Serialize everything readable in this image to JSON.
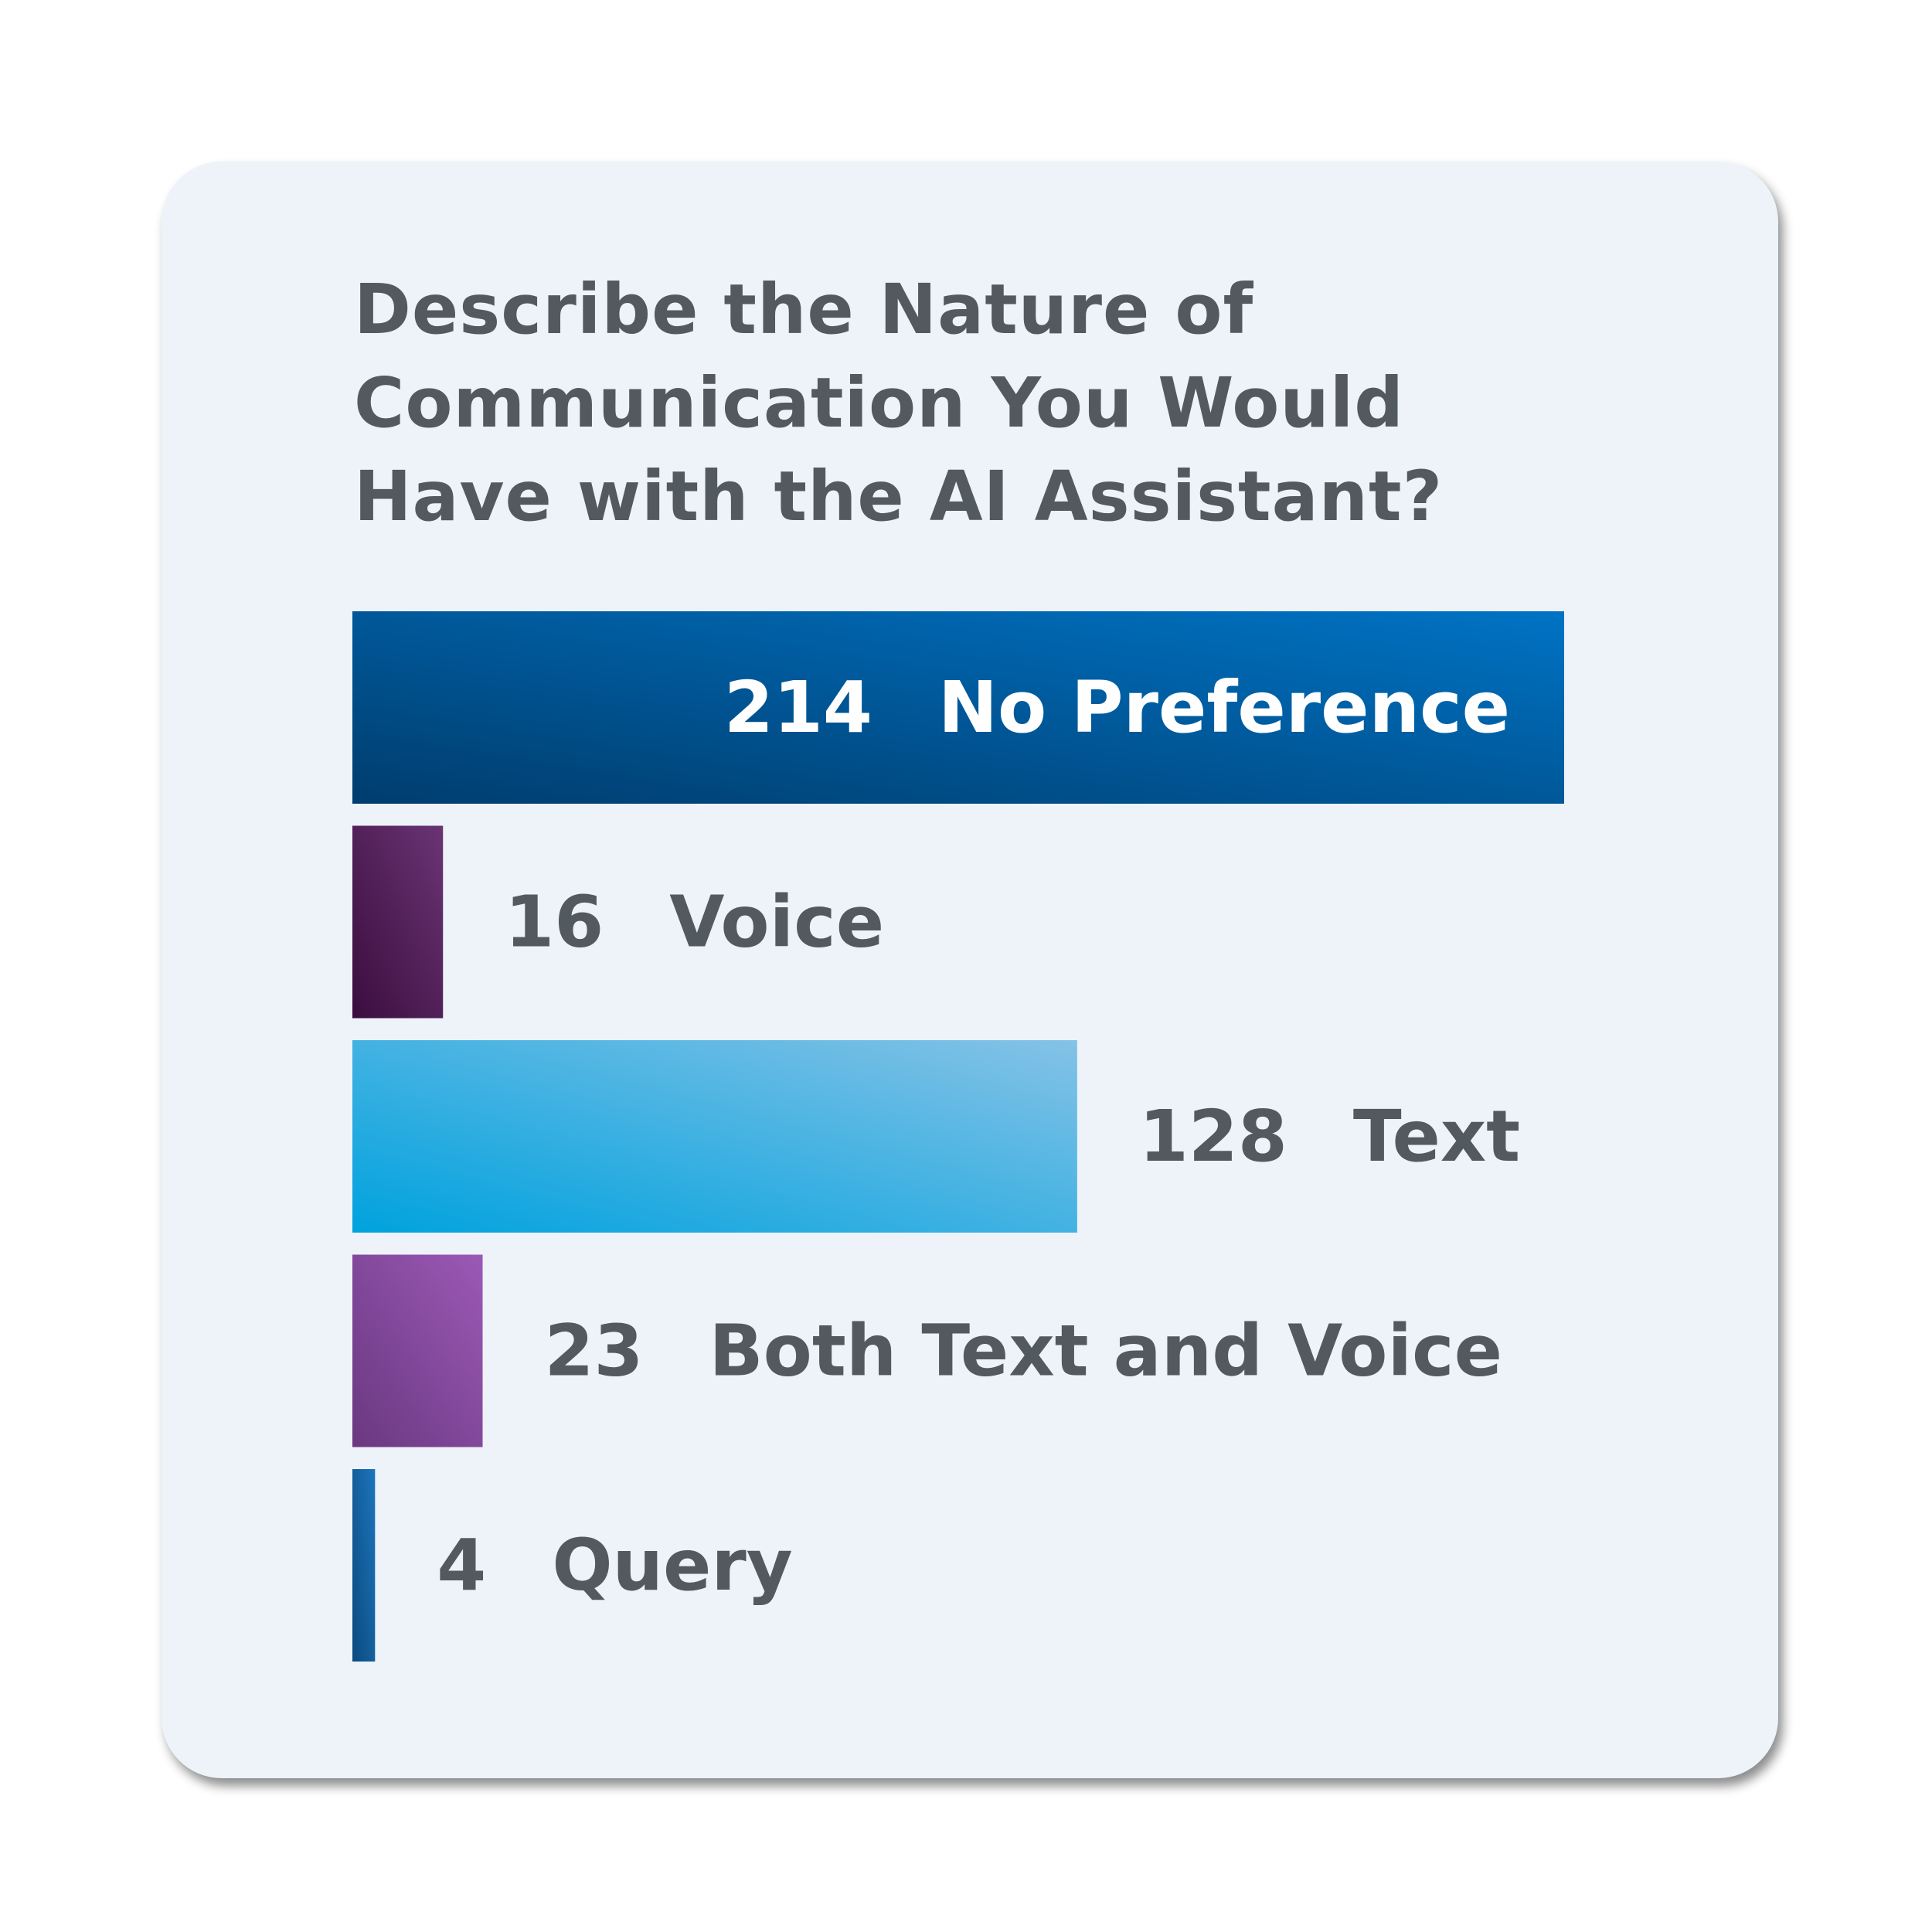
{
  "title": "Describe the Nature of Communication You Would Have with the AI Assistant?",
  "chart_data": {
    "type": "bar",
    "orientation": "horizontal",
    "title": "Describe the Nature of Communication You Would Have with the AI Assistant?",
    "categories": [
      "No Preference",
      "Voice",
      "Text",
      "Both Text and Voice",
      "Query"
    ],
    "values": [
      214,
      16,
      128,
      23,
      4
    ],
    "xlim": [
      0,
      214
    ],
    "grid": false,
    "legend": "none",
    "colors": [
      [
        "#003d6e",
        "#0073c4"
      ],
      [
        "#3b0d3e",
        "#6a3474"
      ],
      [
        "#00a2de",
        "#85c2e6"
      ],
      [
        "#6a3880",
        "#9b59b6"
      ],
      [
        "#0b4a7e",
        "#1c75bc"
      ]
    ],
    "label_colors": {
      "inside": "#ffffff",
      "outside": "#525a60"
    }
  }
}
